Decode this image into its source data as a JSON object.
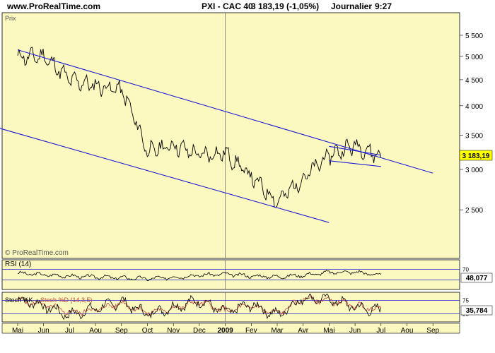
{
  "header": {
    "site": "www.ProRealTime.com",
    "instrument": "PXI - CAC 40",
    "price_info": "3 183,19 (-1,05%)",
    "period": "Journalier",
    "time": "9:27"
  },
  "watermark": "© ProRealTime.com",
  "colors": {
    "panel_bg": "#fbf8c0",
    "trend_line": "#1f1fd6",
    "price_box": "#ffff00",
    "stoch_d": "#d04040"
  },
  "chart_data": [
    {
      "type": "line",
      "title": "Prix",
      "last_value_label": "3 183,19",
      "y_ticks": [
        "5 500",
        "5 000",
        "4 500",
        "4 000",
        "3 500",
        "3 000",
        "2 500"
      ],
      "y_tick_values": [
        5500,
        5000,
        4500,
        4000,
        3500,
        3000,
        2500
      ],
      "y_scale": "log",
      "x_ticks": [
        "Mai",
        "Jun",
        "Jul",
        "Aou",
        "Sep",
        "Oct",
        "Nov",
        "Dec",
        "2009",
        "Fev",
        "Mar",
        "Avr",
        "Mai",
        "Jun",
        "Jul",
        "Aou",
        "Sep"
      ],
      "x": [
        "2008-05",
        "2008-06",
        "2008-07",
        "2008-08",
        "2008-09",
        "2008-10",
        "2008-11",
        "2008-12",
        "2009-01",
        "2009-02",
        "2009-03",
        "2009-04",
        "2009-05",
        "2009-06",
        "2009-07"
      ],
      "values": [
        4980,
        5000,
        4500,
        4380,
        4300,
        3250,
        3350,
        3200,
        3230,
        2900,
        2590,
        2880,
        3200,
        3350,
        3183
      ],
      "grid": true,
      "trendlines": [
        {
          "from": [
            "2008-05",
            5150
          ],
          "to": [
            "2009-09",
            2950
          ]
        },
        {
          "from": [
            "2008-04",
            3650
          ],
          "to": [
            "2009-05",
            2360
          ]
        },
        {
          "from": [
            "2009-05",
            3330
          ],
          "to": [
            "2009-07",
            3200
          ]
        },
        {
          "from": [
            "2009-05",
            3120
          ],
          "to": [
            "2009-07",
            3040
          ]
        }
      ]
    },
    {
      "type": "line",
      "title": "RSI (14)",
      "last_value_label": "48,077",
      "y_ticks": [
        "70",
        "30"
      ],
      "y_tick_values": [
        70,
        30
      ],
      "ylim": [
        0,
        100
      ],
      "values": [
        55,
        50,
        44,
        42,
        38,
        35,
        40,
        48,
        52,
        45,
        42,
        48,
        58,
        60,
        48
      ]
    },
    {
      "type": "line",
      "title": "Stoch %K",
      "series": [
        {
          "name": "Stoch %K",
          "values": [
            80,
            55,
            20,
            45,
            70,
            25,
            50,
            75,
            30,
            60,
            20,
            85,
            80,
            50,
            36
          ]
        },
        {
          "name": "Stoch %D (14,3,5)",
          "values": [
            75,
            60,
            30,
            40,
            65,
            30,
            45,
            70,
            35,
            55,
            25,
            80,
            75,
            55,
            40
          ]
        }
      ],
      "last_value_label": "35,784",
      "y_ticks": [
        "75",
        "25"
      ],
      "y_tick_values": [
        75,
        25
      ],
      "ylim": [
        0,
        100
      ]
    }
  ]
}
